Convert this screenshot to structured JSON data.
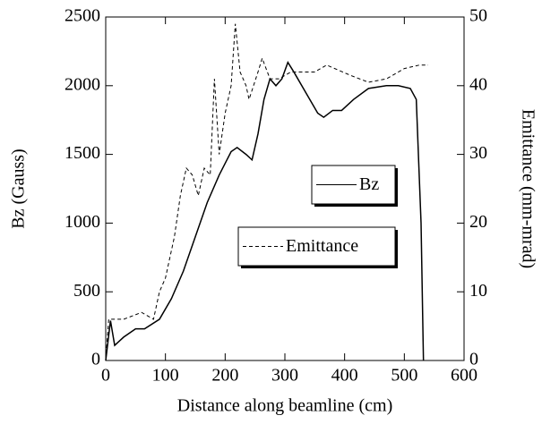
{
  "chart_data": {
    "type": "line",
    "xlabel": "Distance along beamline (cm)",
    "ylabel": "Bz (Gauss)",
    "y2label": "Emittance (mm-mrad)",
    "xlim": [
      0,
      600
    ],
    "xticks": [
      0,
      100,
      200,
      300,
      400,
      500,
      600
    ],
    "ylim": [
      0,
      2500
    ],
    "yticks": [
      0,
      500,
      1000,
      1500,
      2000,
      2500
    ],
    "y2lim": [
      0,
      50
    ],
    "y2ticks": [
      0,
      10,
      20,
      30,
      40,
      50
    ],
    "series": [
      {
        "name": "Bz",
        "color": "#000000",
        "line_style": "solid",
        "x": [
          0,
          8,
          15,
          30,
          50,
          65,
          90,
          110,
          130,
          150,
          170,
          190,
          210,
          220,
          235,
          245,
          255,
          265,
          275,
          285,
          295,
          305,
          315,
          335,
          355,
          365,
          380,
          395,
          415,
          440,
          470,
          490,
          510,
          520,
          528,
          532
        ],
        "values": [
          0,
          290,
          110,
          170,
          230,
          230,
          300,
          450,
          650,
          900,
          1150,
          1350,
          1520,
          1550,
          1500,
          1460,
          1650,
          1900,
          2050,
          2000,
          2050,
          2170,
          2100,
          1950,
          1800,
          1770,
          1820,
          1820,
          1900,
          1980,
          2000,
          2000,
          1980,
          1900,
          1000,
          0
        ]
      },
      {
        "name": "Emittance",
        "color": "#000000",
        "line_style": "dashed",
        "axis": "y2",
        "x": [
          0,
          5,
          30,
          60,
          80,
          90,
          100,
          115,
          125,
          135,
          145,
          155,
          165,
          175,
          182,
          190,
          200,
          210,
          217,
          225,
          235,
          240,
          255,
          262,
          275,
          290,
          310,
          350,
          370,
          410,
          440,
          470,
          500,
          525,
          540
        ],
        "values": [
          0,
          6,
          6,
          7,
          6,
          10,
          12,
          18,
          24,
          28,
          27,
          24,
          28,
          27,
          41,
          30,
          36,
          40,
          49,
          42,
          40,
          38,
          42,
          44,
          41,
          41,
          42,
          42,
          43,
          41.5,
          40.5,
          41,
          42.5,
          43,
          43
        ]
      }
    ]
  }
}
